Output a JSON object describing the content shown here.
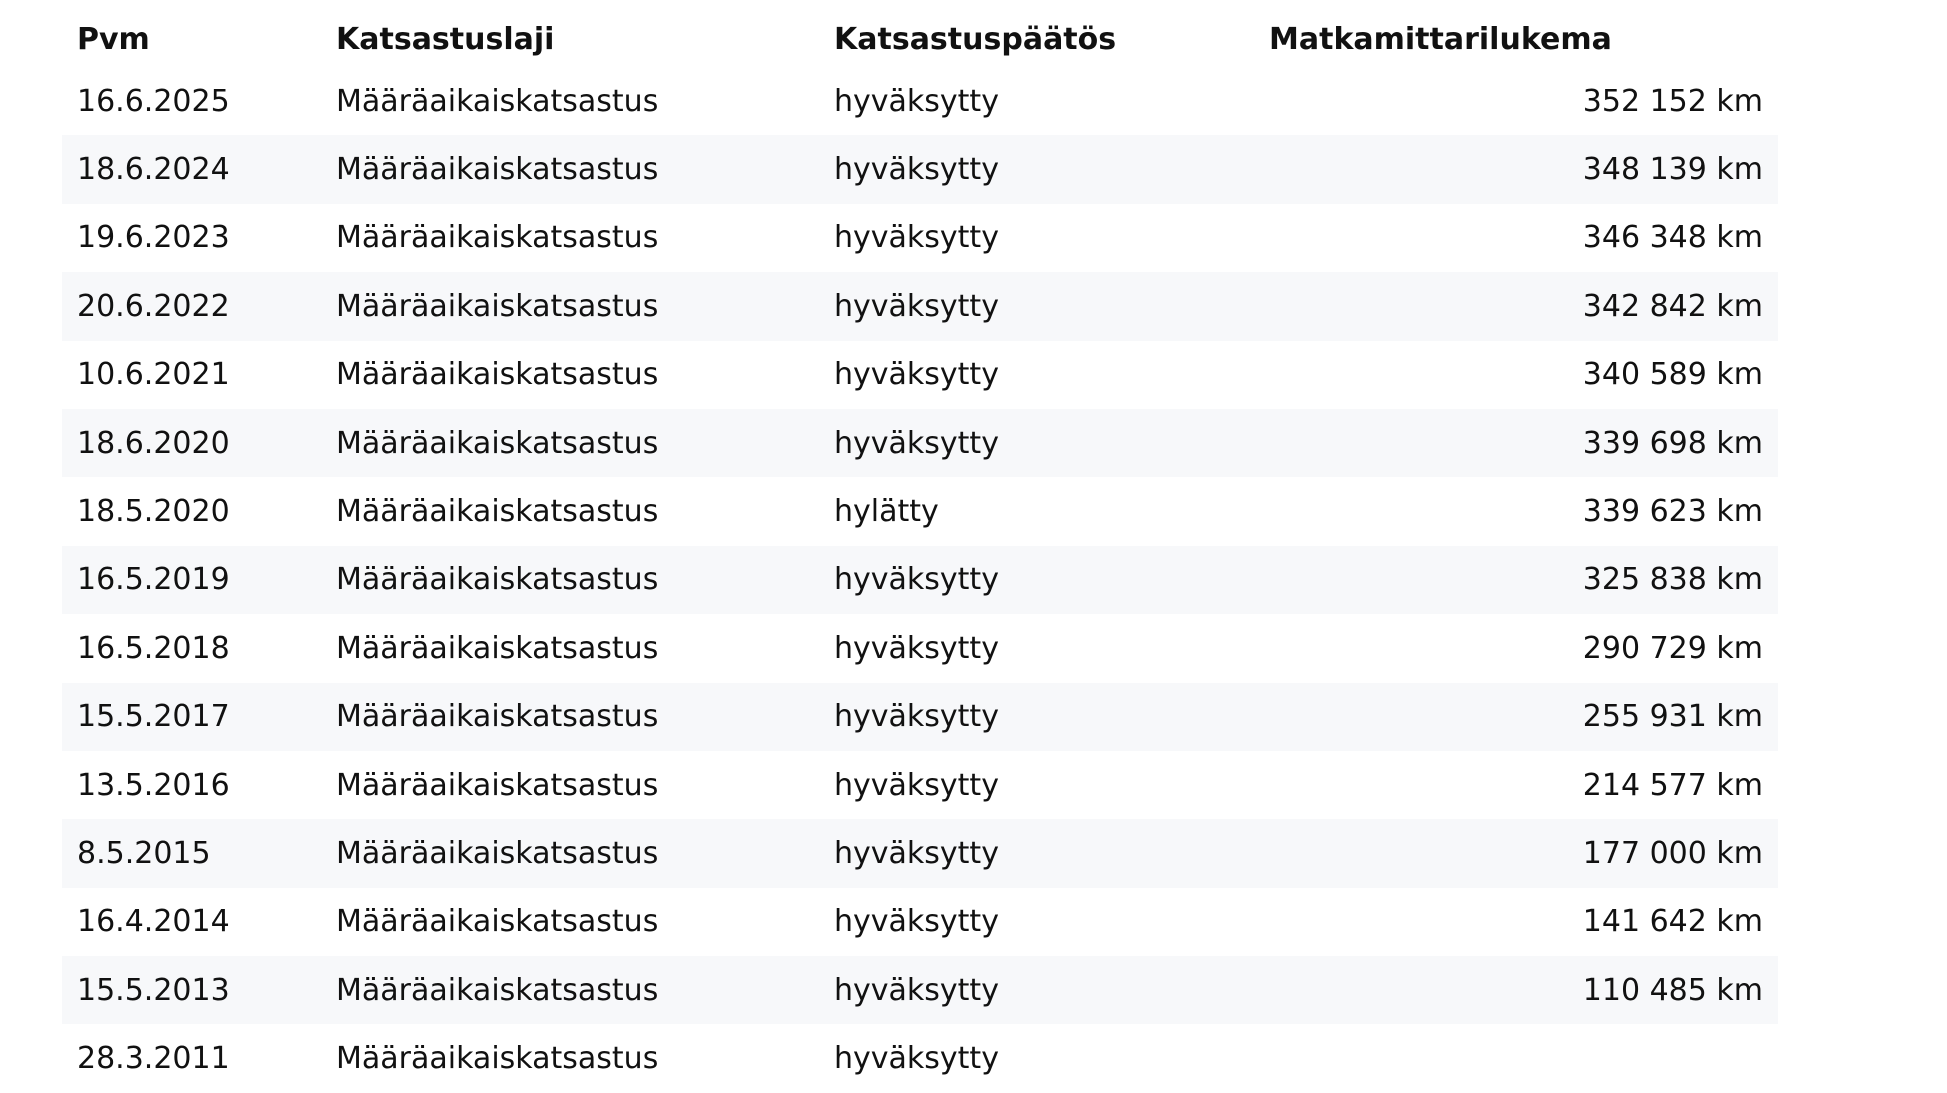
{
  "headers": {
    "date": "Pvm",
    "type": "Katsastuslaji",
    "decision": "Katsastuspäätös",
    "odometer": "Matkamittarilukema"
  },
  "rows": [
    {
      "date": "16.6.2025",
      "type": "Määräaikaiskatsastus",
      "decision": "hyväksytty",
      "odometer": "352 152 km"
    },
    {
      "date": "18.6.2024",
      "type": "Määräaikaiskatsastus",
      "decision": "hyväksytty",
      "odometer": "348 139 km"
    },
    {
      "date": "19.6.2023",
      "type": "Määräaikaiskatsastus",
      "decision": "hyväksytty",
      "odometer": "346 348 km"
    },
    {
      "date": "20.6.2022",
      "type": "Määräaikaiskatsastus",
      "decision": "hyväksytty",
      "odometer": "342 842 km"
    },
    {
      "date": "10.6.2021",
      "type": "Määräaikaiskatsastus",
      "decision": "hyväksytty",
      "odometer": "340 589 km"
    },
    {
      "date": "18.6.2020",
      "type": "Määräaikaiskatsastus",
      "decision": "hyväksytty",
      "odometer": "339 698 km"
    },
    {
      "date": "18.5.2020",
      "type": "Määräaikaiskatsastus",
      "decision": "hylätty",
      "odometer": "339 623 km"
    },
    {
      "date": "16.5.2019",
      "type": "Määräaikaiskatsastus",
      "decision": "hyväksytty",
      "odometer": "325 838 km"
    },
    {
      "date": "16.5.2018",
      "type": "Määräaikaiskatsastus",
      "decision": "hyväksytty",
      "odometer": "290 729 km"
    },
    {
      "date": "15.5.2017",
      "type": "Määräaikaiskatsastus",
      "decision": "hyväksytty",
      "odometer": "255 931 km"
    },
    {
      "date": "13.5.2016",
      "type": "Määräaikaiskatsastus",
      "decision": "hyväksytty",
      "odometer": "214 577 km"
    },
    {
      "date": "8.5.2015",
      "type": "Määräaikaiskatsastus",
      "decision": "hyväksytty",
      "odometer": "177 000 km"
    },
    {
      "date": "16.4.2014",
      "type": "Määräaikaiskatsastus",
      "decision": "hyväksytty",
      "odometer": "141 642 km"
    },
    {
      "date": "15.5.2013",
      "type": "Määräaikaiskatsastus",
      "decision": "hyväksytty",
      "odometer": "110 485 km"
    },
    {
      "date": "28.3.2011",
      "type": "Määräaikaiskatsastus",
      "decision": "hyväksytty",
      "odometer": ""
    }
  ]
}
